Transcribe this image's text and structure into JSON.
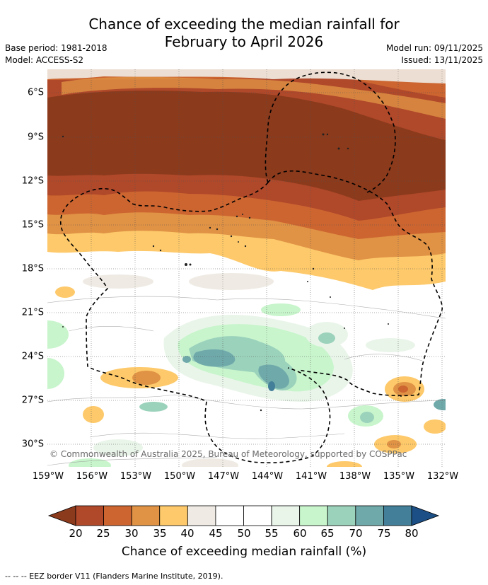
{
  "title_line1": "Chance of exceeding the median rainfall for",
  "title_line2": "February to April 2026",
  "base_period": "Base period: 1981-2018",
  "model": "Model: ACCESS-S2",
  "model_run": "Model run: 09/11/2025",
  "issued": "Issued: 13/11/2025",
  "copyright": "© Commonwealth of Australia 2025, Bureau of Meteorology, supported by COSPPac",
  "lat_labels": [
    "6°S",
    "9°S",
    "12°S",
    "15°S",
    "18°S",
    "21°S",
    "24°S",
    "27°S",
    "30°S"
  ],
  "lon_labels": [
    "159°W",
    "156°W",
    "153°W",
    "150°W",
    "147°W",
    "144°W",
    "141°W",
    "138°W",
    "135°W",
    "132°W"
  ],
  "colorbar": {
    "label": "Chance of exceeding median rainfall (%)",
    "ticks": [
      "20",
      "25",
      "30",
      "35",
      "40",
      "45",
      "50",
      "55",
      "60",
      "65",
      "70",
      "75",
      "80"
    ],
    "colors": [
      "#8b3a1c",
      "#b0482a",
      "#cc6530",
      "#e09245",
      "#fdc96a",
      "#efebe4",
      "#ffffff",
      "#ffffff",
      "#eaf5ea",
      "#c8f5cc",
      "#9bd2bc",
      "#6fa9aa",
      "#437f98",
      "#1c4f86"
    ]
  },
  "footnote": "-- -- -- EEZ border V11 (Flanders Marine Institute, 2019)."
}
